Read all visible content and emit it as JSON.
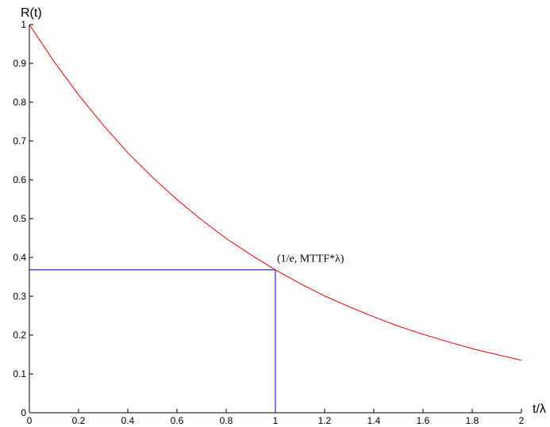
{
  "chart_data": {
    "type": "line",
    "title": "",
    "xlabel": "t/λ",
    "ylabel": "R(t)",
    "xlim": [
      0,
      2
    ],
    "ylim": [
      0,
      1
    ],
    "x_ticks": [
      "0",
      "0.2",
      "0.4",
      "0.6",
      "0.8",
      "1",
      "1.2",
      "1.4",
      "1.6",
      "1.8",
      "2"
    ],
    "y_ticks": [
      "0",
      "0.1",
      "0.2",
      "0.3",
      "0.4",
      "0.5",
      "0.6",
      "0.7",
      "0.8",
      "0.9",
      "1"
    ],
    "grid": false,
    "series": [
      {
        "color": "#ff0000",
        "x": [
          0,
          0.1,
          0.2,
          0.3,
          0.4,
          0.5,
          0.6,
          0.7,
          0.8,
          0.9,
          1.0,
          1.1,
          1.2,
          1.3,
          1.4,
          1.5,
          1.6,
          1.7,
          1.8,
          1.9,
          2.0
        ],
        "y": [
          1.0,
          0.905,
          0.819,
          0.741,
          0.67,
          0.607,
          0.549,
          0.497,
          0.449,
          0.407,
          0.368,
          0.333,
          0.301,
          0.273,
          0.247,
          0.223,
          0.202,
          0.183,
          0.165,
          0.15,
          0.135
        ]
      }
    ],
    "reference_lines": [
      {
        "color": "#0000ff",
        "x": [
          0,
          1
        ],
        "y": [
          0.368,
          0.368
        ]
      },
      {
        "color": "#0000ff",
        "x": [
          1,
          1
        ],
        "y": [
          0,
          0.368
        ]
      }
    ],
    "annotations": [
      {
        "text": "(1/e, MTTF*λ)",
        "x": 1.0,
        "y": 0.368
      }
    ]
  }
}
